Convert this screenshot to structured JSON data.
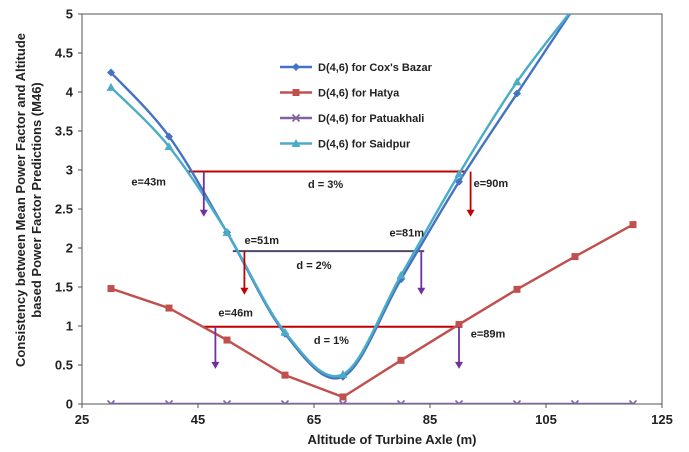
{
  "chart_data": {
    "type": "line",
    "xlabel": "Altitude of Turbine Axle (m)",
    "ylabel_lines": [
      "Consistency between Mean Power Factor and Altitude",
      "based Power Factor Predictions (M46)"
    ],
    "xlim": [
      25,
      125
    ],
    "ylim": [
      0,
      5
    ],
    "xticks": [
      25,
      45,
      65,
      85,
      105,
      125
    ],
    "yticks": [
      0,
      0.5,
      1,
      1.5,
      2,
      2.5,
      3,
      3.5,
      4,
      4.5,
      5
    ],
    "ytick_labels": [
      "0",
      "0.5",
      "1",
      "1.5",
      "2",
      "2.5",
      "3",
      "3.5",
      "4",
      "4.5",
      "5"
    ],
    "grid": false,
    "legend_position": "top-center",
    "series": [
      {
        "name": "D(4,6) for Cox's Bazar",
        "color": "#4472c4",
        "marker": "diamond",
        "points": [
          [
            30,
            4.25
          ],
          [
            40,
            3.43
          ],
          [
            50,
            2.2
          ],
          [
            60,
            0.9
          ],
          [
            70,
            0.35
          ],
          [
            80,
            1.6
          ],
          [
            90,
            2.85
          ],
          [
            100,
            3.98
          ],
          [
            110,
            5.1
          ]
        ]
      },
      {
        "name": "D(4,6) for Hatya",
        "color": "#c0504d",
        "marker": "square",
        "points": [
          [
            30,
            1.48
          ],
          [
            40,
            1.23
          ],
          [
            50,
            0.82
          ],
          [
            60,
            0.37
          ],
          [
            70,
            0.09
          ],
          [
            80,
            0.56
          ],
          [
            90,
            1.02
          ],
          [
            100,
            1.47
          ],
          [
            110,
            1.89
          ],
          [
            120,
            2.3
          ]
        ]
      },
      {
        "name": "D(4,6) for Patuakhali",
        "color": "#8064a2",
        "marker": "x",
        "points": [
          [
            30,
            0
          ],
          [
            40,
            0
          ],
          [
            50,
            0
          ],
          [
            60,
            0
          ],
          [
            70,
            0
          ],
          [
            80,
            0
          ],
          [
            90,
            0
          ],
          [
            100,
            0
          ],
          [
            110,
            0
          ],
          [
            120,
            0
          ]
        ]
      },
      {
        "name": "D(4,6) for Saidpur",
        "color": "#4bacc6",
        "marker": "triangle",
        "points": [
          [
            30,
            4.06
          ],
          [
            40,
            3.3
          ],
          [
            50,
            2.2
          ],
          [
            60,
            0.92
          ],
          [
            70,
            0.38
          ],
          [
            80,
            1.65
          ],
          [
            90,
            2.95
          ],
          [
            100,
            4.13
          ],
          [
            110,
            5.1
          ]
        ]
      }
    ],
    "annotations": {
      "hlines": [
        {
          "label": "d = 3%",
          "y": 2.98,
          "x_from": 43,
          "x_to": 91,
          "color": "#c00000",
          "label_x": 67,
          "label_y": 2.77
        },
        {
          "label": "d = 2%",
          "y": 1.96,
          "x_from": 51,
          "x_to": 84,
          "color": "#4a4a6a",
          "label_x": 65,
          "label_y": 1.73
        },
        {
          "label": "d = 1%",
          "y": 0.99,
          "x_from": 46,
          "x_to": 90,
          "color": "#c00000",
          "label_x": 68,
          "label_y": 0.77
        }
      ],
      "markers": [
        {
          "label": "e=43m",
          "text_x": 36.5,
          "text_y": 2.8,
          "arrow_x": 46,
          "arrow_y_from": 2.98,
          "arrow_y_to": 2.4,
          "color": "#7030a0"
        },
        {
          "label": "e=90m",
          "text_x": 95.5,
          "text_y": 2.78,
          "arrow_x": 92,
          "arrow_y_from": 2.98,
          "arrow_y_to": 2.4,
          "color": "#c00000"
        },
        {
          "label": "e=51m",
          "text_x": 56,
          "text_y": 2.05,
          "arrow_x": 53,
          "arrow_y_from": 1.96,
          "arrow_y_to": 1.4,
          "color": "#c00000"
        },
        {
          "label": "e=81m",
          "text_x": 81,
          "text_y": 2.15,
          "arrow_x": 83.5,
          "arrow_y_from": 1.96,
          "arrow_y_to": 1.4,
          "color": "#7030a0"
        },
        {
          "label": "e=46m",
          "text_x": 51.5,
          "text_y": 1.12,
          "arrow_x": 48,
          "arrow_y_from": 0.99,
          "arrow_y_to": 0.45,
          "color": "#7030a0"
        },
        {
          "label": "e=89m",
          "text_x": 95,
          "text_y": 0.85,
          "arrow_x": 90,
          "arrow_y_from": 0.99,
          "arrow_y_to": 0.45,
          "color": "#7030a0"
        }
      ]
    }
  }
}
